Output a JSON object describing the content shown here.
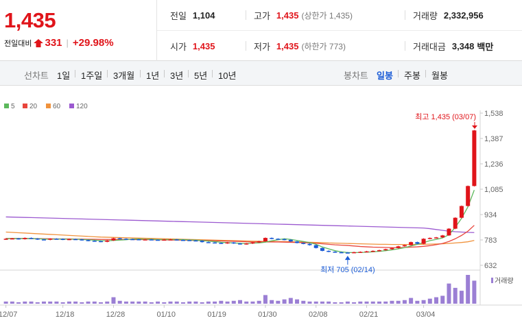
{
  "summary": {
    "price": "1,435",
    "change_label": "전일대비",
    "change_value": "331",
    "change_pct": "+29.98%",
    "quotes": [
      {
        "label": "전일",
        "value": "1,104",
        "sub": "",
        "color": "normal"
      },
      {
        "label": "고가",
        "value": "1,435",
        "sub": "(상한가 1,435)",
        "color": "red"
      },
      {
        "label": "거래량",
        "value": "2,332,956",
        "sub": "",
        "color": "normal"
      },
      {
        "label": "시가",
        "value": "1,435",
        "sub": "",
        "color": "red"
      },
      {
        "label": "저가",
        "value": "1,435",
        "sub": "(하한가 773)",
        "color": "red"
      },
      {
        "label": "거래대금",
        "value": "3,348",
        "sub": "백만",
        "color": "normal"
      }
    ]
  },
  "toolbar": {
    "line_chart_label": "선차트",
    "periods": [
      "1일",
      "1주일",
      "3개월",
      "1년",
      "3년",
      "5년",
      "10년"
    ],
    "candle_chart_label": "봉차트",
    "candle_periods": [
      "일봉",
      "주봉",
      "월봉"
    ],
    "active_candle": "일봉"
  },
  "colors": {
    "up": "#e0141a",
    "down": "#1a5bd6",
    "ma5": "#5cb85c",
    "ma20": "#e8453c",
    "ma60": "#f0923c",
    "ma120": "#9b59d0",
    "volume": "#9b7fd4"
  },
  "chart_data": {
    "type": "candlestick",
    "legend": [
      "5",
      "20",
      "60",
      "120"
    ],
    "ytick_labels": [
      "1,538",
      "1,387",
      "1,236",
      "1,085",
      "934",
      "783",
      "632"
    ],
    "yticks": [
      1538,
      1387,
      1236,
      1085,
      934,
      783,
      632
    ],
    "ylim": [
      632,
      1538
    ],
    "xtick_labels": [
      "12/07",
      "12/18",
      "12/28",
      "01/10",
      "01/19",
      "01/30",
      "02/08",
      "02/21",
      "03/04"
    ],
    "high_annotation": "최고 1,435 (03/07)",
    "low_annotation": "최저 705 (02/14)",
    "volume_label": "거래량",
    "closes": [
      790,
      792,
      788,
      795,
      791,
      786,
      784,
      790,
      789,
      785,
      788,
      786,
      782,
      778,
      776,
      772,
      780,
      793,
      790,
      788,
      787,
      786,
      786,
      784,
      783,
      785,
      786,
      783,
      782,
      780,
      778,
      770,
      768,
      765,
      763,
      768,
      762,
      758,
      762,
      768,
      775,
      795,
      790,
      788,
      784,
      774,
      765,
      760,
      752,
      735,
      718,
      713,
      710,
      708,
      707,
      710,
      712,
      715,
      718,
      722,
      728,
      735,
      745,
      752,
      770,
      760,
      790,
      795,
      798,
      810,
      850,
      915,
      985,
      1104,
      1435
    ],
    "opens": [
      787,
      790,
      792,
      788,
      795,
      791,
      786,
      784,
      790,
      789,
      785,
      788,
      786,
      782,
      778,
      776,
      772,
      780,
      793,
      790,
      788,
      787,
      786,
      786,
      784,
      783,
      785,
      786,
      783,
      782,
      780,
      778,
      770,
      768,
      765,
      763,
      768,
      762,
      758,
      762,
      768,
      775,
      795,
      790,
      788,
      784,
      774,
      765,
      760,
      752,
      735,
      718,
      713,
      710,
      708,
      707,
      710,
      712,
      715,
      718,
      722,
      728,
      735,
      745,
      752,
      770,
      760,
      790,
      795,
      798,
      810,
      850,
      915,
      985,
      1104
    ],
    "ma5": [
      790,
      791,
      791,
      792,
      791,
      790,
      788,
      787,
      788,
      788,
      787,
      787,
      786,
      784,
      782,
      779,
      778,
      780,
      782,
      784,
      788,
      789,
      787,
      787,
      785,
      785,
      785,
      785,
      785,
      783,
      782,
      779,
      776,
      773,
      769,
      767,
      765,
      763,
      761,
      764,
      765,
      770,
      778,
      784,
      790,
      786,
      780,
      774,
      767,
      757,
      741,
      730,
      719,
      712,
      708,
      708,
      708,
      710,
      712,
      715,
      719,
      724,
      730,
      737,
      747,
      757,
      767,
      779,
      786,
      795,
      814,
      858,
      912,
      980,
      1080
    ],
    "ma20": [
      792,
      792,
      792,
      791,
      791,
      791,
      790,
      790,
      789,
      789,
      789,
      788,
      788,
      787,
      787,
      786,
      786,
      786,
      786,
      786,
      785,
      785,
      785,
      784,
      784,
      783,
      783,
      782,
      782,
      781,
      780,
      780,
      779,
      778,
      777,
      776,
      775,
      774,
      772,
      771,
      771,
      771,
      771,
      771,
      770,
      769,
      768,
      767,
      765,
      763,
      760,
      757,
      754,
      752,
      750,
      747,
      744,
      742,
      740,
      739,
      738,
      737,
      737,
      738,
      740,
      742,
      745,
      749,
      755,
      762,
      774,
      790,
      810,
      835,
      870
    ],
    "ma60": [
      830,
      828,
      826,
      824,
      822,
      820,
      818,
      816,
      814,
      812,
      810,
      808,
      806,
      804,
      802,
      800,
      799,
      798,
      797,
      796,
      795,
      794,
      793,
      792,
      791,
      790,
      789,
      788,
      787,
      786,
      785,
      784,
      783,
      782,
      781,
      780,
      779,
      778,
      777,
      776,
      775,
      774,
      774,
      773,
      773,
      772,
      771,
      770,
      769,
      768,
      767,
      765,
      764,
      763,
      762,
      761,
      760,
      759,
      758,
      757,
      757,
      756,
      756,
      756,
      756,
      757,
      757,
      758,
      759,
      760,
      762,
      765,
      768,
      772,
      780
    ],
    "ma120": [
      920,
      919,
      918,
      917,
      916,
      915,
      914,
      913,
      912,
      911,
      910,
      909,
      908,
      907,
      906,
      905,
      904,
      903,
      902,
      901,
      900,
      899,
      898,
      897,
      896,
      895,
      894,
      893,
      892,
      891,
      890,
      889,
      888,
      887,
      886,
      885,
      884,
      883,
      882,
      881,
      880,
      879,
      878,
      877,
      876,
      875,
      874,
      873,
      872,
      871,
      870,
      869,
      868,
      867,
      866,
      865,
      864,
      863,
      862,
      861,
      860,
      859,
      858,
      857,
      856,
      855,
      854,
      850,
      845,
      840,
      835,
      832,
      830,
      828,
      827
    ],
    "volumes": [
      3,
      3,
      2,
      3,
      3,
      2,
      3,
      3,
      3,
      2,
      3,
      3,
      2,
      3,
      3,
      2,
      3,
      9,
      4,
      3,
      3,
      3,
      3,
      2,
      3,
      2,
      3,
      3,
      2,
      3,
      3,
      2,
      3,
      3,
      4,
      3,
      4,
      5,
      3,
      3,
      4,
      12,
      5,
      4,
      6,
      8,
      6,
      4,
      3,
      3,
      3,
      3,
      2,
      2,
      3,
      2,
      3,
      3,
      3,
      3,
      3,
      4,
      4,
      5,
      8,
      4,
      5,
      7,
      9,
      11,
      28,
      22,
      18,
      40,
      32
    ]
  }
}
